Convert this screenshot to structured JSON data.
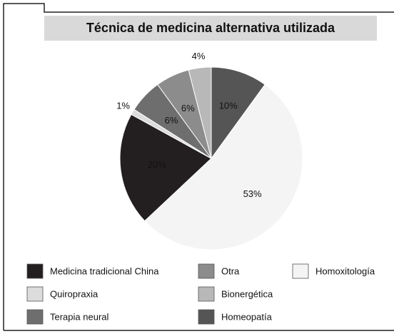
{
  "chart_data": {
    "type": "pie",
    "title": "Técnica de medicina alternativa utilizada",
    "categories": [
      "Homeopatía",
      "Homoxitología",
      "Medicina tradicional China",
      "Quiropraxia",
      "Terapia neural",
      "Otra",
      "Bionergética"
    ],
    "values": [
      10,
      53,
      20,
      1,
      6,
      6,
      4
    ],
    "value_labels": [
      "10%",
      "53%",
      "20%",
      "1%",
      "6%",
      "6%",
      "4%"
    ],
    "colors": [
      "#555555",
      "#f4f4f4",
      "#231f20",
      "#dcdcdc",
      "#6e6e6e",
      "#8c8c8c",
      "#b8b8b8"
    ]
  }
}
